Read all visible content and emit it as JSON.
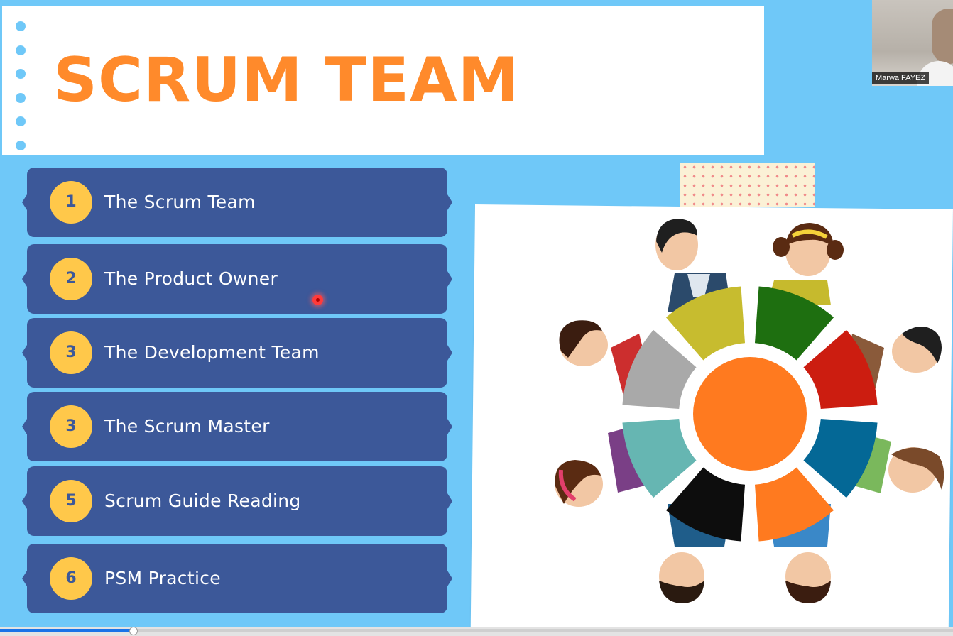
{
  "slide": {
    "title": "SCRUM TEAM",
    "items": [
      {
        "number": "1",
        "label": "The Scrum Team"
      },
      {
        "number": "2",
        "label": "The Product Owner"
      },
      {
        "number": "3",
        "label": "The Development Team"
      },
      {
        "number": "3",
        "label": "The Scrum Master"
      },
      {
        "number": "5",
        "label": "Scrum Guide Reading"
      },
      {
        "number": "6",
        "label": "PSM Practice"
      }
    ],
    "illustration": "team-around-table-illustration"
  },
  "video": {
    "participant_name": "Marwa FAYEZ"
  },
  "playback": {
    "progress": 0.14
  },
  "colors": {
    "background": "#6fc8f8",
    "title": "#ff8a2b",
    "menu_item": "#3c5899",
    "badge": "#ffc84a",
    "laser": "#ff3b3b"
  }
}
